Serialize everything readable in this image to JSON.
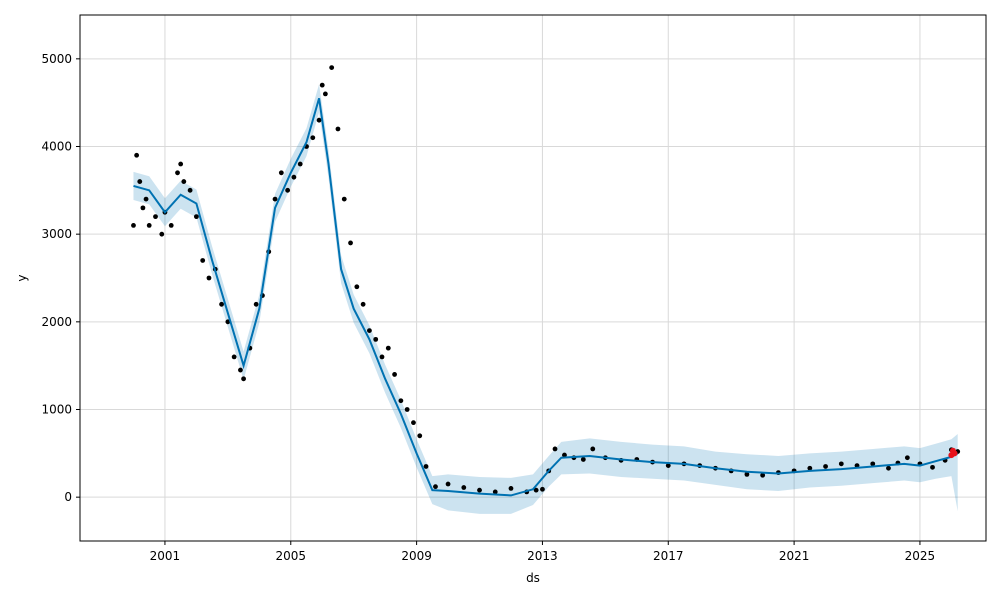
{
  "chart_data": {
    "type": "line",
    "title": "",
    "xlabel": "ds",
    "ylabel": "y",
    "x_range": [
      1998.3,
      2027.1
    ],
    "ylim": [
      -500,
      5500
    ],
    "grid": true,
    "x_ticks": [
      {
        "value": 2001,
        "label": "2001"
      },
      {
        "value": 2005,
        "label": "2005"
      },
      {
        "value": 2009,
        "label": "2009"
      },
      {
        "value": 2013,
        "label": "2013"
      },
      {
        "value": 2017,
        "label": "2017"
      },
      {
        "value": 2021,
        "label": "2021"
      },
      {
        "value": 2025,
        "label": "2025"
      }
    ],
    "y_ticks": [
      {
        "value": 0,
        "label": "0"
      },
      {
        "value": 1000,
        "label": "1000"
      },
      {
        "value": 2000,
        "label": "2000"
      },
      {
        "value": 3000,
        "label": "3000"
      },
      {
        "value": 4000,
        "label": "4000"
      },
      {
        "value": 5000,
        "label": "5000"
      }
    ],
    "colors": {
      "forecast_line": "#0072B2",
      "uncertainty_band": "#0072B2",
      "observed_points": "#000000",
      "highlight_points": "#e8121a",
      "grid": "#d9d9d9"
    },
    "series": [
      {
        "kind": "observed",
        "x": [
          2000.0,
          2000.1,
          2000.2,
          2000.3,
          2000.4,
          2000.5,
          2000.7,
          2000.9,
          2001.0,
          2001.2,
          2001.4,
          2001.5,
          2001.6,
          2001.8,
          2002.0,
          2002.2,
          2002.4,
          2002.6,
          2002.8,
          2003.0,
          2003.2,
          2003.4,
          2003.5,
          2003.7,
          2003.9,
          2004.1,
          2004.3,
          2004.5,
          2004.7,
          2004.9,
          2005.1,
          2005.3,
          2005.5,
          2005.7,
          2005.9,
          2006.0,
          2006.1,
          2006.3,
          2006.5,
          2006.7,
          2006.9,
          2007.1,
          2007.3,
          2007.5,
          2007.7,
          2007.9,
          2008.1,
          2008.3,
          2008.5,
          2008.7,
          2008.9,
          2009.1,
          2009.3,
          2009.6,
          2010.0,
          2010.5,
          2011.0,
          2011.5,
          2012.0,
          2012.5,
          2012.8,
          2013.0,
          2013.2,
          2013.4,
          2013.7,
          2014.0,
          2014.3,
          2014.6,
          2015.0,
          2015.5,
          2016.0,
          2016.5,
          2017.0,
          2017.5,
          2018.0,
          2018.5,
          2019.0,
          2019.5,
          2020.0,
          2020.5,
          2021.0,
          2021.5,
          2022.0,
          2022.5,
          2023.0,
          2023.5,
          2024.0,
          2024.3,
          2024.6,
          2025.0,
          2025.4,
          2025.8,
          2026.0,
          2026.2
        ],
        "y": [
          3100,
          3900,
          3600,
          3300,
          3400,
          3100,
          3200,
          3000,
          3250,
          3100,
          3700,
          3800,
          3600,
          3500,
          3200,
          2700,
          2500,
          2600,
          2200,
          2000,
          1600,
          1450,
          1350,
          1700,
          2200,
          2300,
          2800,
          3400,
          3700,
          3500,
          3650,
          3800,
          4000,
          4100,
          4300,
          4700,
          4600,
          4900,
          4200,
          3400,
          2900,
          2400,
          2200,
          1900,
          1800,
          1600,
          1700,
          1400,
          1100,
          1000,
          850,
          700,
          350,
          120,
          150,
          110,
          80,
          60,
          100,
          60,
          80,
          90,
          300,
          550,
          480,
          450,
          430,
          550,
          450,
          420,
          430,
          400,
          360,
          380,
          360,
          330,
          300,
          260,
          250,
          280,
          300,
          330,
          350,
          380,
          360,
          380,
          330,
          390,
          450,
          380,
          340,
          420,
          540,
          520
        ]
      },
      {
        "kind": "trend",
        "x": [
          2000.0,
          2000.5,
          2001.0,
          2001.5,
          2002.0,
          2002.5,
          2003.0,
          2003.5,
          2004.0,
          2004.5,
          2005.0,
          2005.5,
          2005.9,
          2006.2,
          2006.6,
          2007.0,
          2007.5,
          2008.0,
          2008.5,
          2009.0,
          2009.5,
          2010.0,
          2011.0,
          2012.0,
          2012.7,
          2013.2,
          2013.6,
          2014.5,
          2015.5,
          2016.5,
          2017.5,
          2018.5,
          2019.5,
          2020.5,
          2021.5,
          2022.5,
          2023.5,
          2024.5,
          2025.0,
          2025.5,
          2026.0,
          2026.2
        ],
        "y": [
          3550,
          3500,
          3250,
          3450,
          3350,
          2700,
          2100,
          1500,
          2150,
          3300,
          3700,
          4050,
          4550,
          3800,
          2600,
          2150,
          1800,
          1350,
          950,
          500,
          80,
          70,
          40,
          20,
          90,
          300,
          450,
          470,
          430,
          400,
          380,
          330,
          290,
          270,
          300,
          320,
          350,
          380,
          360,
          410,
          460,
          500
        ]
      },
      {
        "kind": "uncertainty_band",
        "x": [
          2000.0,
          2000.5,
          2001.0,
          2001.5,
          2002.0,
          2002.5,
          2003.0,
          2003.5,
          2004.0,
          2004.5,
          2005.0,
          2005.5,
          2005.9,
          2006.2,
          2006.6,
          2007.0,
          2007.5,
          2008.0,
          2008.5,
          2009.0,
          2009.5,
          2010.0,
          2011.0,
          2012.0,
          2012.7,
          2013.2,
          2013.6,
          2014.5,
          2015.5,
          2016.5,
          2017.5,
          2018.5,
          2019.5,
          2020.5,
          2021.5,
          2022.5,
          2023.5,
          2024.5,
          2025.0,
          2025.5,
          2026.0,
          2026.2
        ],
        "lower": [
          3390,
          3340,
          3090,
          3290,
          3190,
          2540,
          1940,
          1340,
          1990,
          3140,
          3540,
          3890,
          4390,
          3640,
          2440,
          1990,
          1640,
          1190,
          790,
          340,
          -80,
          -150,
          -190,
          -190,
          -90,
          120,
          260,
          270,
          230,
          210,
          190,
          140,
          90,
          70,
          110,
          130,
          160,
          190,
          170,
          210,
          240,
          -160
        ],
        "upper": [
          3710,
          3660,
          3410,
          3610,
          3510,
          2860,
          2260,
          1660,
          2310,
          3460,
          3860,
          4210,
          4710,
          3960,
          2760,
          2310,
          1960,
          1510,
          1110,
          660,
          240,
          260,
          230,
          220,
          260,
          470,
          630,
          670,
          630,
          600,
          580,
          520,
          490,
          470,
          500,
          520,
          550,
          580,
          560,
          610,
          660,
          720
        ]
      },
      {
        "kind": "highlight",
        "x": [
          2026.0,
          2026.05,
          2026.1
        ],
        "y": [
          480,
          530,
          500
        ]
      }
    ]
  }
}
